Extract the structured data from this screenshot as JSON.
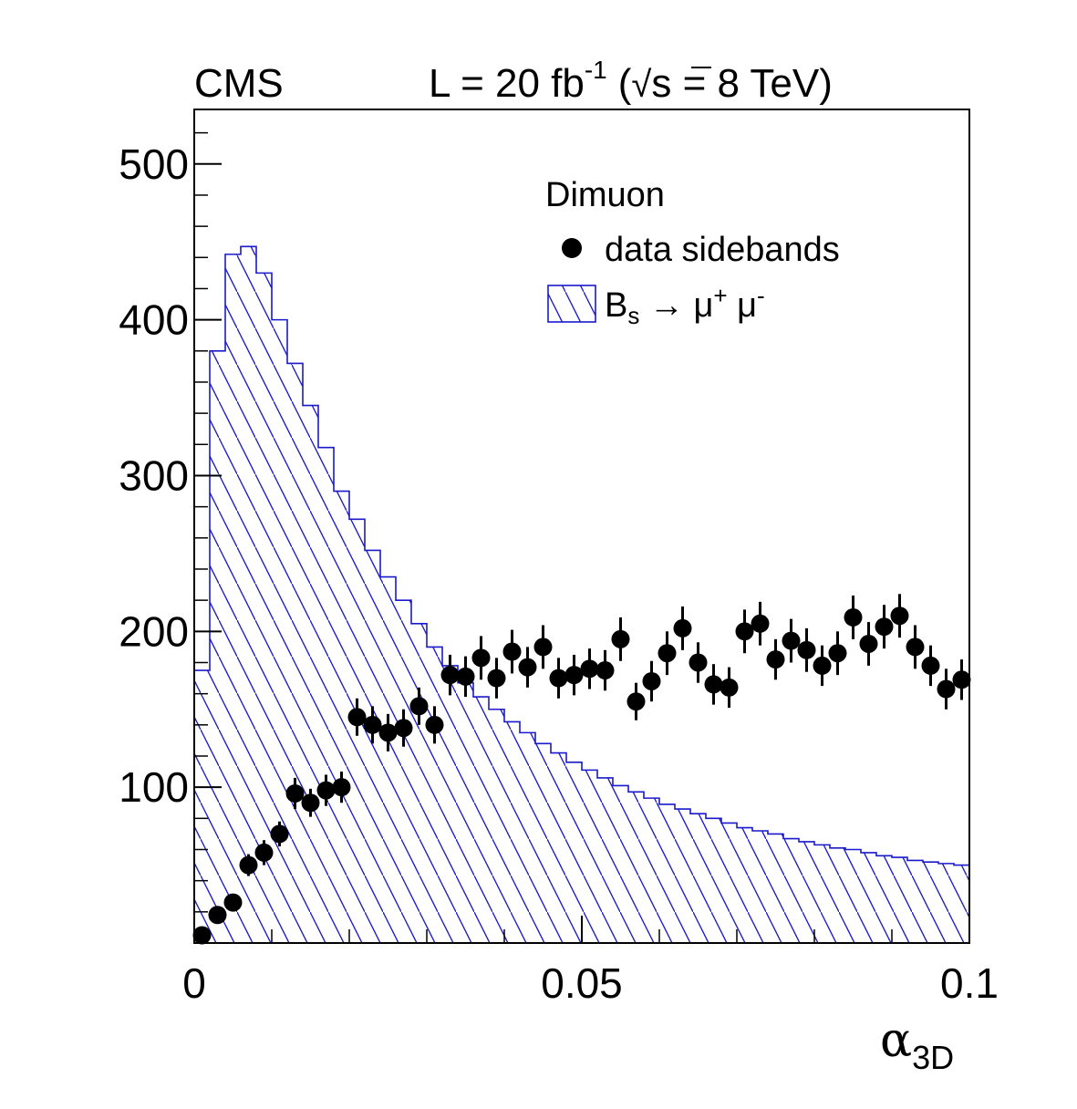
{
  "header": {
    "experiment": "CMS",
    "luminosity_prefix": "L = 20 fb",
    "luminosity_exp": "-1",
    "energy_open": "(",
    "sqrt_symbol": "√",
    "energy_rest": "s = 8 TeV)"
  },
  "legend": {
    "title": "Dimuon",
    "data_label": "data sidebands",
    "sig_B": "B",
    "sig_sub": "s",
    "sig_arrow": " → μ",
    "sig_plus": "+",
    "sig_mu2": " μ",
    "sig_minus": "-"
  },
  "axis": {
    "x_title": "α",
    "x_title_sub": "3D"
  },
  "colors": {
    "signal_line": "#1a1acc",
    "data": "#000000",
    "frame": "#000000"
  },
  "chart_data": {
    "type": "histogram",
    "title": "",
    "xlabel": "α3D",
    "ylabel": "",
    "xlim": [
      0,
      0.1
    ],
    "ylim": [
      0,
      535
    ],
    "x_ticks": [
      {
        "value": 0,
        "label": "0"
      },
      {
        "value": 0.05,
        "label": "0.05"
      },
      {
        "value": 0.1,
        "label": "0.1"
      }
    ],
    "y_ticks": [
      {
        "value": 100,
        "label": "100"
      },
      {
        "value": 200,
        "label": "200"
      },
      {
        "value": 300,
        "label": "300"
      },
      {
        "value": 400,
        "label": "400"
      },
      {
        "value": 500,
        "label": "500"
      }
    ],
    "signal": {
      "name": "Bs → μ+ μ-",
      "bin_edges_start": 0,
      "bin_width": 0.002,
      "values": [
        175,
        380,
        442,
        447,
        430,
        400,
        372,
        345,
        318,
        290,
        272,
        252,
        235,
        220,
        205,
        190,
        178,
        167,
        158,
        150,
        142,
        135,
        128,
        122,
        116,
        111,
        106,
        101,
        97,
        93,
        89,
        86,
        83,
        80,
        77,
        74,
        72,
        70,
        67,
        65,
        63,
        61,
        60,
        58,
        56,
        55,
        53,
        52,
        51,
        50
      ]
    },
    "data": {
      "name": "data sidebands",
      "x": [
        0.001,
        0.003,
        0.005,
        0.007,
        0.009,
        0.011,
        0.013,
        0.015,
        0.017,
        0.019,
        0.021,
        0.023,
        0.025,
        0.027,
        0.029,
        0.031,
        0.033,
        0.035,
        0.037,
        0.039,
        0.041,
        0.043,
        0.045,
        0.047,
        0.049,
        0.051,
        0.053,
        0.055,
        0.057,
        0.059,
        0.061,
        0.063,
        0.065,
        0.067,
        0.069,
        0.071,
        0.073,
        0.075,
        0.077,
        0.079,
        0.081,
        0.083,
        0.085,
        0.087,
        0.089,
        0.091,
        0.093,
        0.095,
        0.097,
        0.099
      ],
      "y": [
        5,
        18,
        26,
        50,
        58,
        70,
        96,
        90,
        98,
        100,
        145,
        140,
        135,
        138,
        152,
        140,
        172,
        171,
        183,
        170,
        187,
        177,
        190,
        170,
        172,
        176,
        175,
        195,
        155,
        168,
        186,
        202,
        180,
        166,
        164,
        200,
        205,
        182,
        194,
        188,
        178,
        186,
        209,
        192,
        203,
        210,
        190,
        178,
        163,
        169
      ],
      "err": [
        2,
        4,
        5,
        7,
        8,
        8,
        10,
        9,
        10,
        10,
        12,
        12,
        12,
        12,
        12,
        12,
        13,
        13,
        14,
        13,
        14,
        13,
        14,
        13,
        13,
        13,
        13,
        14,
        12,
        13,
        14,
        14,
        13,
        13,
        13,
        14,
        14,
        13,
        14,
        14,
        13,
        14,
        14,
        14,
        14,
        14,
        14,
        13,
        13,
        13
      ]
    }
  }
}
